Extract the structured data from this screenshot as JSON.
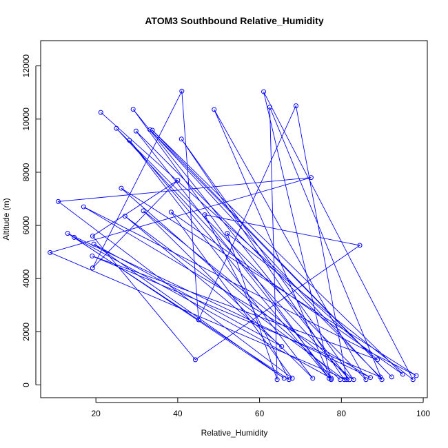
{
  "chart_data": {
    "type": "line",
    "title": "ATOM3 Southbound Relative_Humidity",
    "xlabel": "Relative_Humidity",
    "ylabel": "Altitude (m)",
    "xlim": [
      6.5,
      101
    ],
    "ylim": [
      -480,
      12950
    ],
    "xticks": [
      20,
      40,
      60,
      80,
      100
    ],
    "yticks": [
      0,
      2000,
      4000,
      6000,
      8000,
      10000,
      12000
    ],
    "grid": false,
    "legend": "none",
    "series": [
      {
        "color": "#0000ff",
        "marker": "open-circle",
        "x": [
          21.2,
          88.8,
          19.1,
          89.5,
          29.8,
          77.5,
          14.7,
          66.0,
          19.5,
          65.4,
          27.1,
          80.7,
          40.9,
          83.0,
          31.6,
          73.0,
          28.2,
          77.0,
          29.1,
          82.0,
          25.0,
          86.0,
          48.9,
          77.5,
          61.0,
          97.5,
          52.1,
          64.3,
          62.5,
          89.9,
          33.2,
          92.3,
          33.8,
          95.0,
          38.4,
          68.0,
          10.8,
          72.6,
          8.8,
          81.3,
          68.9,
          45.1,
          41.0,
          19.2,
          40.0,
          19.2,
          44.3,
          84.5,
          46.6,
          67.2,
          13.1,
          87.1,
          17.0,
          98.3,
          26.2,
          79.7
        ],
        "y": [
          10250,
          950,
          4850,
          300,
          9550,
          250,
          5550,
          250,
          5300,
          1450,
          6350,
          200,
          9250,
          200,
          6550,
          250,
          9200,
          250,
          10370,
          200,
          9650,
          200,
          10360,
          200,
          11030,
          200,
          5700,
          200,
          10450,
          200,
          9600,
          300,
          9580,
          400,
          6500,
          250,
          6900,
          7800,
          4980,
          200,
          10500,
          2450,
          11050,
          4400,
          7700,
          5600,
          950,
          5250,
          6400,
          200,
          5700,
          280,
          6700,
          350,
          7400,
          200
        ]
      }
    ]
  }
}
